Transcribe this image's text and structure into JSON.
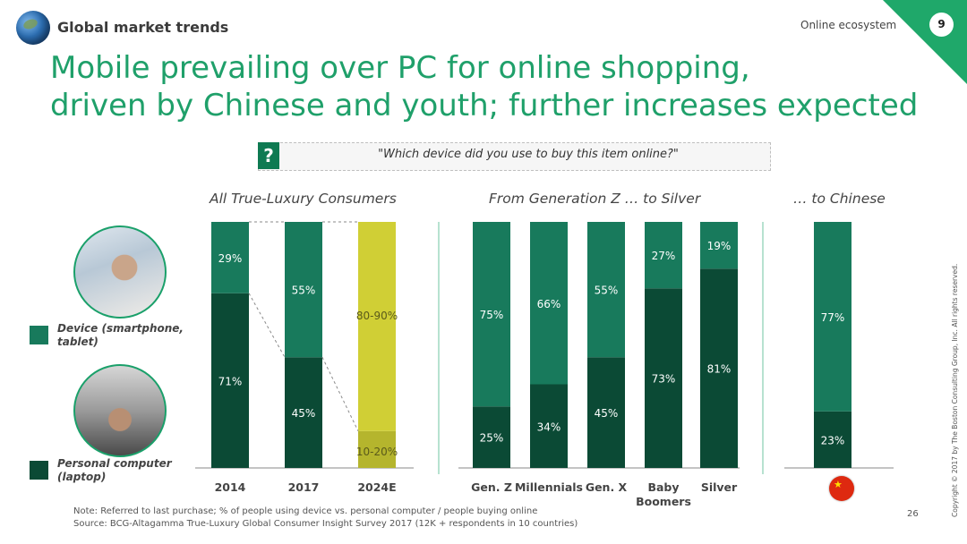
{
  "header": {
    "brand": "Global market trends",
    "section": "Online ecosystem",
    "badge": "9",
    "title_line1": "Mobile prevailing over PC for online shopping,",
    "title_line2": "driven by Chinese and youth; further increases expected"
  },
  "question": {
    "icon": "?",
    "text": "\"Which device did you use to buy this item online?\""
  },
  "legend": {
    "device": {
      "label": "Device (smartphone, tablet)",
      "line1": "Device (smartphone,",
      "line2": "tablet)",
      "color": "#187a5c"
    },
    "pc": {
      "label": "Personal computer (laptop)",
      "line1": "Personal computer",
      "line2": "(laptop)",
      "color": "#0b4a35"
    }
  },
  "colors": {
    "device": "#187a5c",
    "pc": "#0b4a35",
    "forecast": "#d0cf35",
    "forecast_dark": "#b5b52d",
    "label_light": "#ffffff",
    "label_forecast": "#5a5a1a"
  },
  "footer": {
    "note": "Note: Referred to last purchase; % of people using device vs. personal computer / people buying online",
    "source": "Source: BCG-Altagamma True-Luxury Global Consumer Insight Survey 2017 (12K + respondents in 10 countries)",
    "page": "26",
    "copyright": "Copyright © 2017 by The Boston Consulting Group, Inc. All rights reserved."
  },
  "chart_data": {
    "type": "bar",
    "stacked": true,
    "ylim": [
      0,
      100
    ],
    "grid": false,
    "groups": [
      {
        "title": "All True-Luxury Consumers",
        "categories": [
          "2014",
          "2017",
          "2024E"
        ],
        "series": [
          {
            "name": "Personal computer (laptop)",
            "values": [
              71,
              45,
              15
            ],
            "labels": [
              "71%",
              "45%",
              "10-20%"
            ]
          },
          {
            "name": "Device (smartphone, tablet)",
            "values": [
              29,
              55,
              85
            ],
            "labels": [
              "29%",
              "55%",
              "80-90%"
            ]
          }
        ],
        "forecast_category": "2024E"
      },
      {
        "title": "From Generation Z … to Silver",
        "categories": [
          "Gen. Z",
          "Millennials",
          "Gen. X",
          "Baby Boomers",
          "Silver"
        ],
        "series": [
          {
            "name": "Personal computer (laptop)",
            "values": [
              25,
              34,
              45,
              73,
              81
            ],
            "labels": [
              "25%",
              "34%",
              "45%",
              "73%",
              "81%"
            ]
          },
          {
            "name": "Device (smartphone, tablet)",
            "values": [
              75,
              66,
              55,
              27,
              19
            ],
            "labels": [
              "75%",
              "66%",
              "55%",
              "27%",
              "19%"
            ]
          }
        ]
      },
      {
        "title": "… to Chinese",
        "categories": [
          ""
        ],
        "series": [
          {
            "name": "Personal computer (laptop)",
            "values": [
              23
            ],
            "labels": [
              "23%"
            ]
          },
          {
            "name": "Device (smartphone, tablet)",
            "values": [
              77
            ],
            "labels": [
              "77%"
            ]
          }
        ]
      }
    ]
  }
}
